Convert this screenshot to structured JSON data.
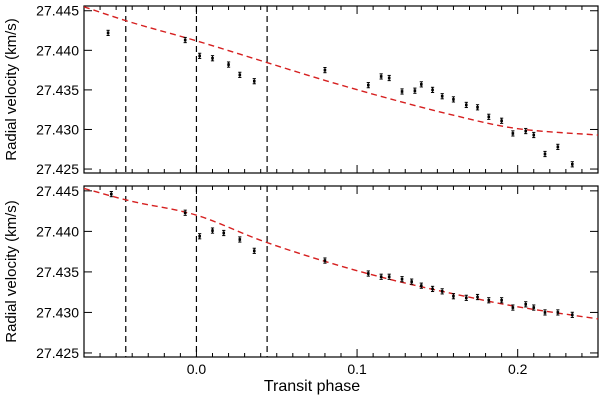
{
  "chart_data": [
    {
      "type": "scatter",
      "ylabel": "Radial velocity (km/s)",
      "xlim": [
        -0.07,
        0.25
      ],
      "ylim": [
        27.4245,
        27.4456
      ],
      "yticks": [
        27.425,
        27.43,
        27.435,
        27.44,
        27.445
      ],
      "ytick_labels": [
        "27.425",
        "27.430",
        "27.435",
        "27.440",
        "27.445"
      ],
      "vlines": [
        -0.044,
        0.0,
        0.044
      ],
      "fit_color": "#d62020",
      "fit": {
        "x": [
          -0.07,
          -0.04,
          0.0,
          0.04,
          0.08,
          0.12,
          0.16,
          0.2,
          0.25
        ],
        "y": [
          27.4455,
          27.4435,
          27.4412,
          27.4387,
          27.4362,
          27.4339,
          27.4318,
          27.4301,
          27.4293
        ]
      },
      "points": {
        "x": [
          -0.055,
          -0.007,
          0.002,
          0.01,
          0.02,
          0.027,
          0.036,
          0.08,
          0.107,
          0.115,
          0.12,
          0.128,
          0.136,
          0.14,
          0.147,
          0.153,
          0.16,
          0.168,
          0.175,
          0.182,
          0.19,
          0.197,
          0.205,
          0.21,
          0.217,
          0.225,
          0.234
        ],
        "y": [
          27.4422,
          27.4413,
          27.4393,
          27.439,
          27.4382,
          27.4369,
          27.4361,
          27.4375,
          27.4356,
          27.4367,
          27.4365,
          27.4348,
          27.4349,
          27.4357,
          27.435,
          27.4342,
          27.4338,
          27.4331,
          27.4328,
          27.4316,
          27.4311,
          27.4295,
          27.4298,
          27.4293,
          27.4269,
          27.4278,
          27.4256
        ]
      }
    },
    {
      "type": "scatter",
      "xlabel": "Transit phase",
      "ylabel": "Radial velocity (km/s)",
      "xlim": [
        -0.07,
        0.25
      ],
      "ylim": [
        27.4245,
        27.4456
      ],
      "xticks": [
        0.0,
        0.1,
        0.2
      ],
      "xtick_labels": [
        "0.0",
        "0.1",
        "0.2"
      ],
      "yticks": [
        27.425,
        27.43,
        27.435,
        27.44,
        27.445
      ],
      "ytick_labels": [
        "27.425",
        "27.430",
        "27.435",
        "27.440",
        "27.445"
      ],
      "vlines": [
        -0.044,
        0.0,
        0.044
      ],
      "fit_color": "#d62020",
      "fit": {
        "x": [
          -0.07,
          -0.04,
          0.0,
          0.04,
          0.08,
          0.12,
          0.16,
          0.2,
          0.25
        ],
        "y": [
          27.4453,
          27.4437,
          27.442,
          27.4389,
          27.4363,
          27.4341,
          27.4323,
          27.4307,
          27.4292
        ]
      },
      "points": {
        "x": [
          -0.053,
          -0.007,
          0.002,
          0.01,
          0.017,
          0.027,
          0.036,
          0.08,
          0.107,
          0.115,
          0.12,
          0.128,
          0.134,
          0.14,
          0.147,
          0.153,
          0.16,
          0.168,
          0.175,
          0.182,
          0.19,
          0.197,
          0.205,
          0.21,
          0.217,
          0.225,
          0.234
        ],
        "y": [
          27.4446,
          27.4423,
          27.4394,
          27.4401,
          27.4398,
          27.439,
          27.4376,
          27.4364,
          27.4348,
          27.4344,
          27.4344,
          27.4341,
          27.4338,
          27.4333,
          27.4329,
          27.4326,
          27.432,
          27.4318,
          27.4319,
          27.4315,
          27.4315,
          27.4306,
          27.431,
          27.4306,
          27.43,
          27.43,
          27.4297
        ]
      }
    }
  ]
}
